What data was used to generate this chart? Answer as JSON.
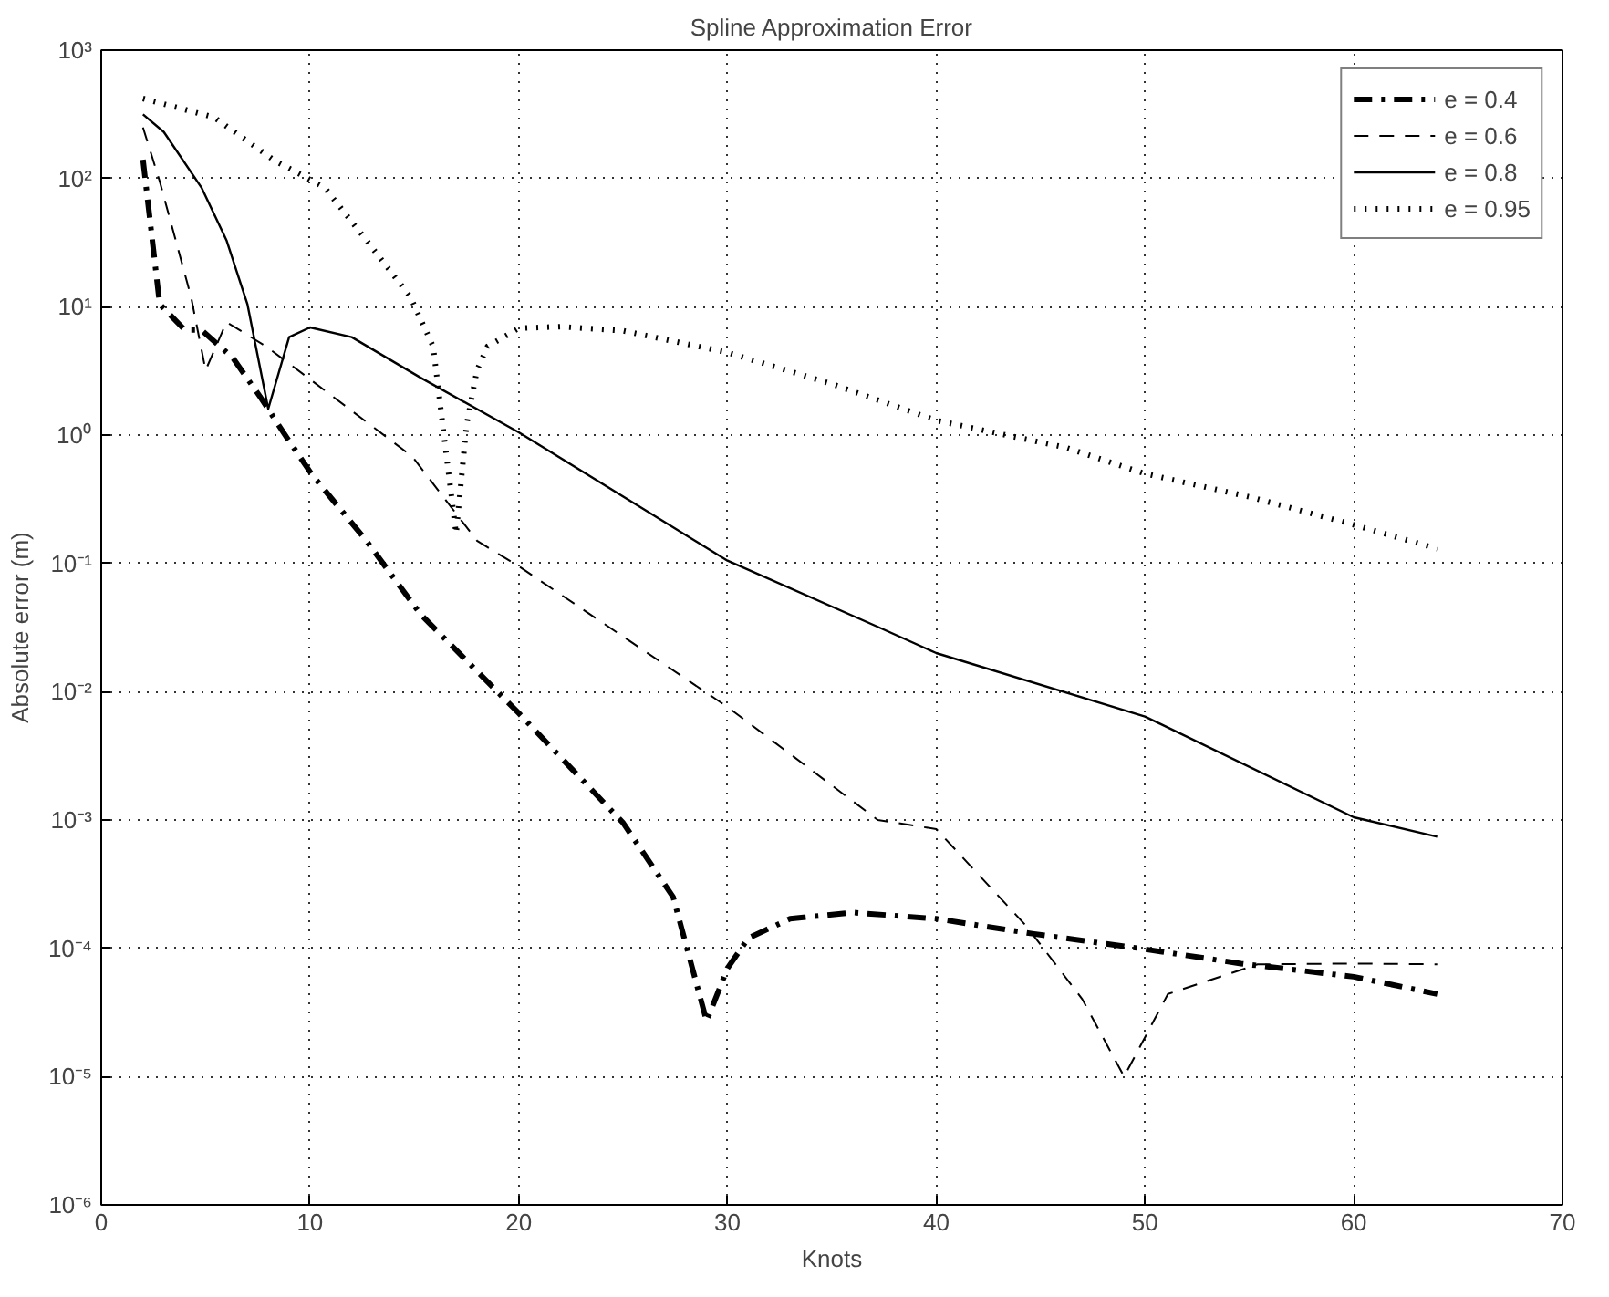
{
  "chart_data": {
    "type": "line",
    "title": "Spline Approximation Error",
    "xlabel": "Knots",
    "ylabel": "Absolute error (m)",
    "xlim": [
      0,
      70
    ],
    "xticks": [
      0,
      10,
      20,
      30,
      40,
      50,
      60,
      70
    ],
    "ylim": [
      1e-06,
      1000
    ],
    "yticks": [
      {
        "value": 1e-06,
        "label": "10⁻⁶"
      },
      {
        "value": 1e-05,
        "label": "10⁻⁵"
      },
      {
        "value": 0.0001,
        "label": "10⁻⁴"
      },
      {
        "value": 0.001,
        "label": "10⁻³"
      },
      {
        "value": 0.01,
        "label": "10⁻²"
      },
      {
        "value": 0.1,
        "label": "10⁻¹"
      },
      {
        "value": 1,
        "label": "10⁰"
      },
      {
        "value": 10,
        "label": "10¹"
      },
      {
        "value": 100,
        "label": "10²"
      },
      {
        "value": 1000,
        "label": "10³"
      }
    ],
    "log": true,
    "grid": true,
    "legend": "top right",
    "series": [
      {
        "name": "e = 0.4",
        "color": "#000000",
        "line_style": "dashdot",
        "x": [
          2,
          2.8,
          4,
          4.8,
          6.3,
          7.6,
          8.9,
          10.1,
          12.7,
          15.3,
          20,
          25,
          27.4,
          29,
          30,
          31,
          33,
          36,
          40,
          44.6,
          49.7,
          54.6,
          60,
          64
        ],
        "values": [
          140,
          10.5,
          6.6,
          6.6,
          4,
          2,
          0.95,
          0.49,
          0.15,
          0.04,
          0.0068,
          0.00095,
          0.00025,
          2.7e-05,
          7e-05,
          0.00012,
          0.00017,
          0.00019,
          0.00017,
          0.00013,
          0.0001,
          7.6e-05,
          6e-05,
          4.4e-05
        ]
      },
      {
        "name": "e = 0.6",
        "color": "#000000",
        "line_style": "dashed",
        "x": [
          2,
          2.8,
          4.3,
          5,
          6,
          7.9,
          9.9,
          14.9,
          18,
          20,
          30,
          37.2,
          40,
          44.3,
          47,
          49,
          51.1,
          55.4,
          60,
          64
        ],
        "values": [
          250,
          95,
          12,
          3.2,
          7.6,
          4.9,
          2.8,
          0.68,
          0.15,
          0.095,
          0.0076,
          0.001,
          0.00085,
          0.00015,
          4e-05,
          1e-05,
          4.4e-05,
          7.5e-05,
          7.6e-05,
          7.5e-05
        ]
      },
      {
        "name": "e = 0.8",
        "color": "#000000",
        "line_style": "solid",
        "x": [
          2,
          3,
          4.8,
          6,
          7,
          8,
          9,
          10,
          12,
          15.3,
          20,
          30,
          37.2,
          40,
          50,
          60,
          64
        ],
        "values": [
          316,
          230,
          85,
          33,
          10.5,
          1.6,
          5.8,
          6.9,
          5.8,
          2.8,
          1.05,
          0.105,
          0.032,
          0.02,
          0.0064,
          0.00105,
          0.00074
        ]
      },
      {
        "name": "e = 0.95",
        "color": "#000000",
        "line_style": "dotted",
        "x": [
          2,
          5.4,
          8.3,
          10.7,
          12.7,
          14.8,
          15.9,
          16.4,
          17,
          17.5,
          18,
          18.5,
          20,
          22,
          25,
          30,
          35,
          40,
          46.2,
          50,
          55,
          60,
          64
        ],
        "values": [
          420,
          300,
          138,
          85,
          33,
          12,
          4.9,
          1.05,
          0.17,
          1.2,
          3.2,
          4.9,
          6.8,
          7,
          6.5,
          4.4,
          2.5,
          1.3,
          0.8,
          0.5,
          0.33,
          0.2,
          0.13
        ]
      }
    ]
  }
}
